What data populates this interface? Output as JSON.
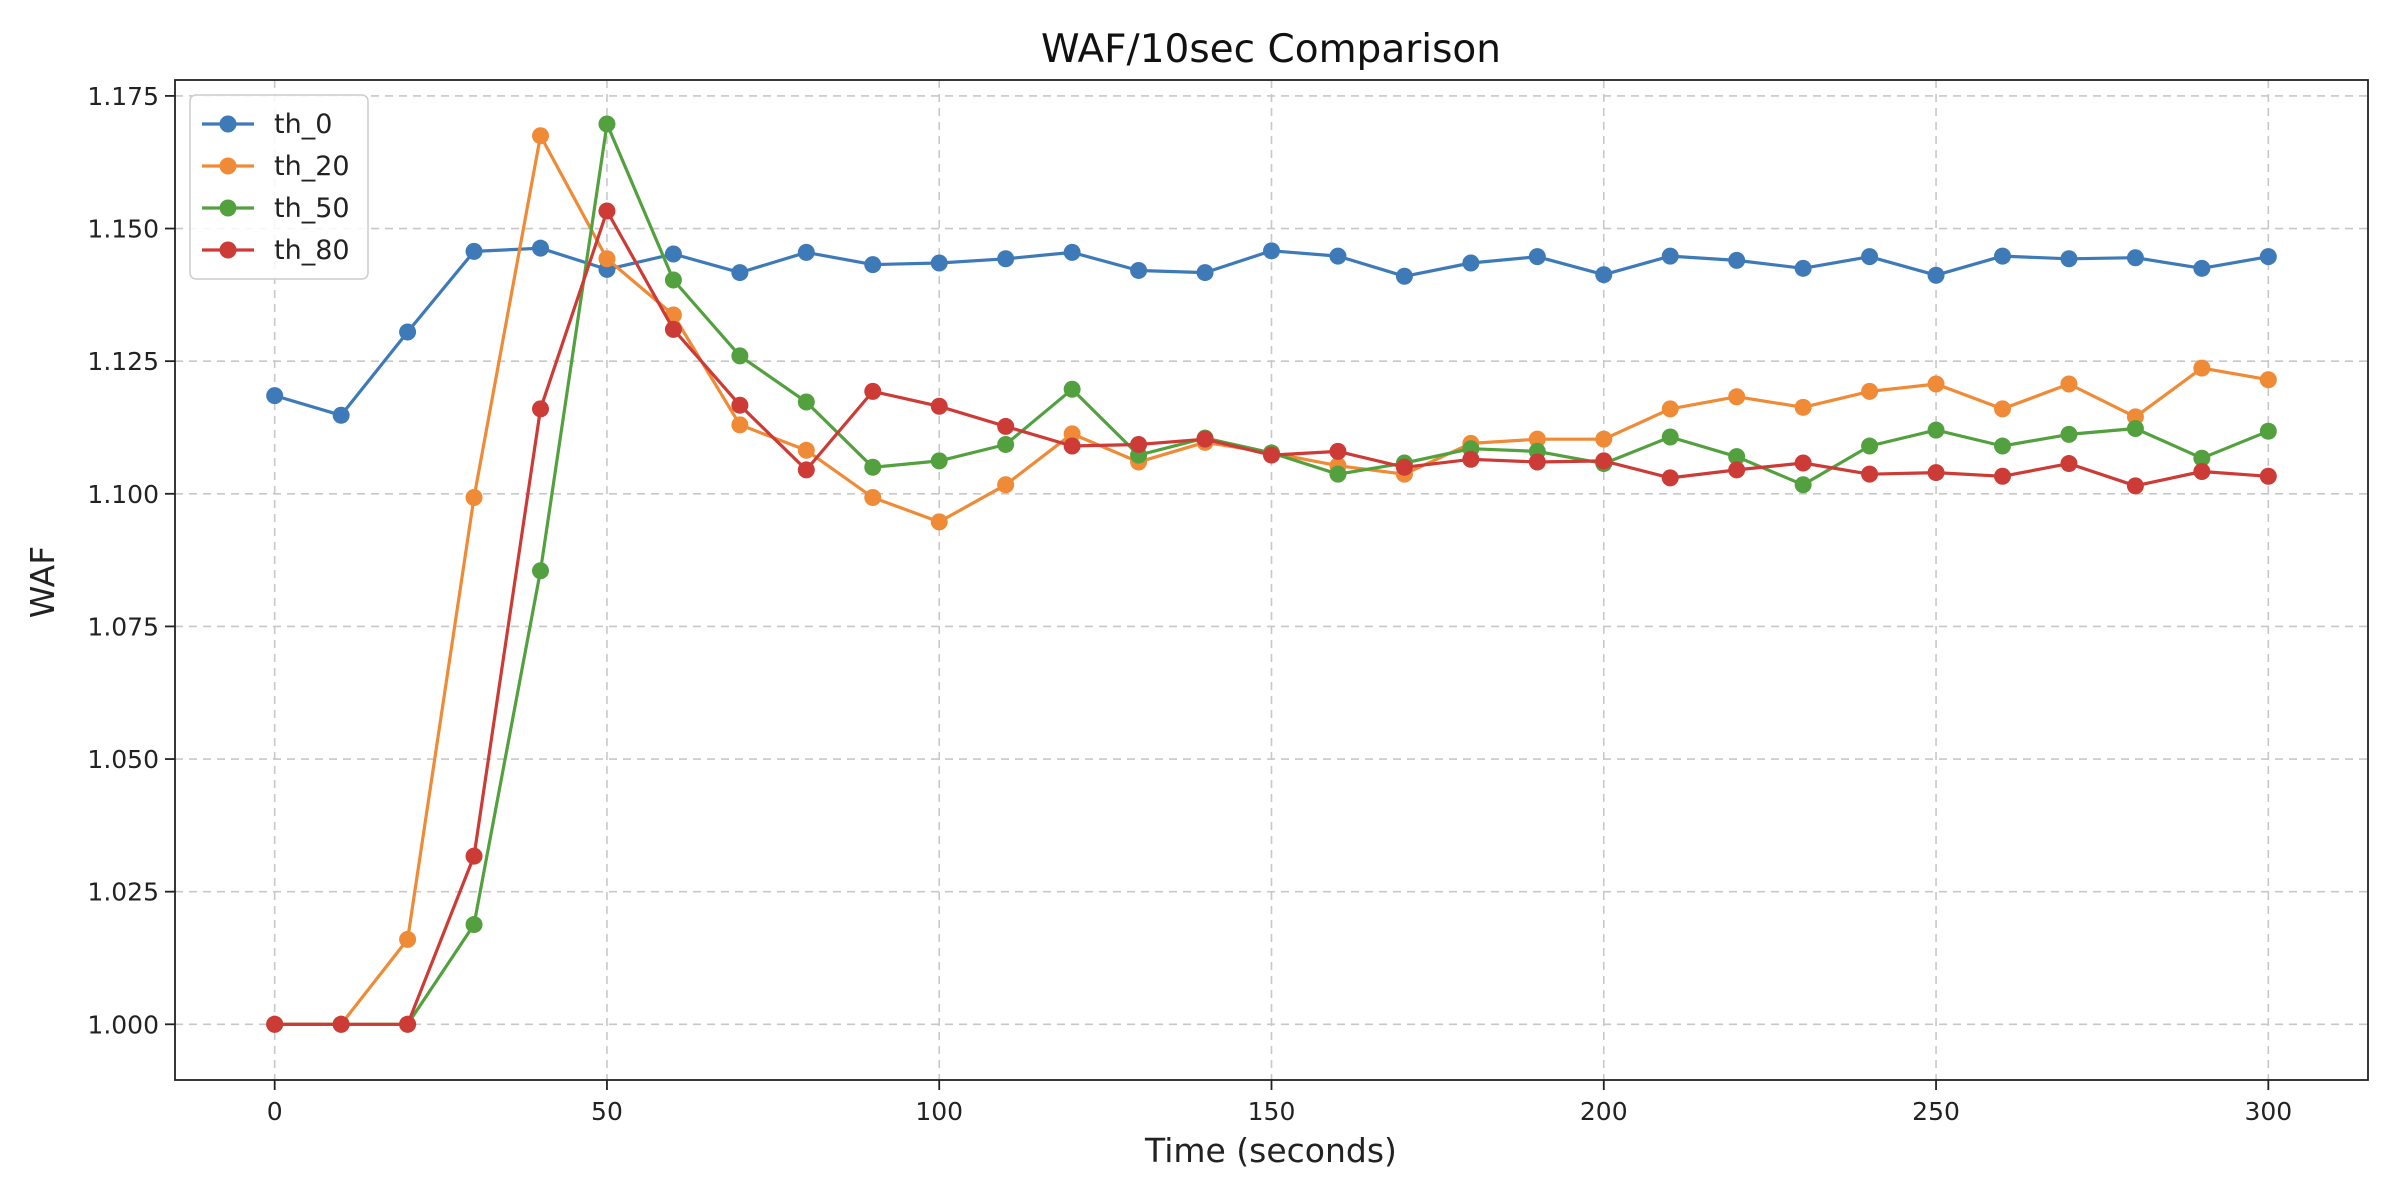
{
  "chart_data": {
    "type": "line",
    "title": "WAF/10sec Comparison",
    "xlabel": "Time (seconds)",
    "ylabel": "WAF",
    "xlim": [
      -15,
      315
    ],
    "ylim": [
      0.9895,
      1.178
    ],
    "xticks": [
      0,
      50,
      100,
      150,
      200,
      250,
      300
    ],
    "xtick_labels": [
      "0",
      "50",
      "100",
      "150",
      "200",
      "250",
      "300"
    ],
    "yticks": [
      1.0,
      1.025,
      1.05,
      1.075,
      1.1,
      1.125,
      1.15,
      1.175
    ],
    "ytick_labels": [
      "1.000",
      "1.025",
      "1.050",
      "1.075",
      "1.100",
      "1.125",
      "1.150",
      "1.175"
    ],
    "grid": true,
    "legend_position": "top-left",
    "x": [
      0,
      10,
      20,
      30,
      40,
      50,
      60,
      70,
      80,
      90,
      100,
      110,
      120,
      130,
      140,
      150,
      160,
      170,
      180,
      190,
      200,
      210,
      220,
      230,
      240,
      250,
      260,
      270,
      280,
      290,
      300
    ],
    "series": [
      {
        "name": "th_0",
        "color": "#3e7ab8",
        "values": [
          1.1185,
          1.1148,
          1.1305,
          1.1457,
          1.1463,
          1.1423,
          1.1452,
          1.1417,
          1.1455,
          1.1432,
          1.1435,
          1.1443,
          1.1455,
          1.1421,
          1.1417,
          1.1458,
          1.1448,
          1.141,
          1.1435,
          1.1447,
          1.1413,
          1.1448,
          1.144,
          1.1425,
          1.1447,
          1.1412,
          1.1448,
          1.1443,
          1.1445,
          1.1425,
          1.1447
        ]
      },
      {
        "name": "th_20",
        "color": "#ef8a36",
        "values": [
          1.0,
          1.0,
          1.016,
          1.0993,
          1.1675,
          1.1443,
          1.1337,
          1.113,
          1.1082,
          1.0993,
          1.0947,
          1.1017,
          1.1113,
          1.106,
          1.1097,
          1.1077,
          1.1053,
          1.1037,
          1.1095,
          1.1103,
          1.1103,
          1.116,
          1.1183,
          1.1163,
          1.1193,
          1.1207,
          1.116,
          1.1207,
          1.1145,
          1.1237,
          1.1215
        ]
      },
      {
        "name": "th_50",
        "color": "#53a03f",
        "values": [
          1.0,
          1.0,
          1.0,
          1.0188,
          1.0855,
          1.1697,
          1.1403,
          1.126,
          1.1173,
          1.105,
          1.1062,
          1.1093,
          1.1197,
          1.1073,
          1.1105,
          1.1077,
          1.1037,
          1.1058,
          1.1085,
          1.108,
          1.1057,
          1.1107,
          1.107,
          1.1017,
          1.109,
          1.112,
          1.109,
          1.1112,
          1.1123,
          1.1067,
          1.1118
        ]
      },
      {
        "name": "th_80",
        "color": "#cc3b36",
        "values": [
          1.0,
          1.0,
          1.0,
          1.0317,
          1.116,
          1.1533,
          1.131,
          1.1167,
          1.1045,
          1.1193,
          1.1165,
          1.1127,
          1.109,
          1.1093,
          1.1103,
          1.1073,
          1.108,
          1.105,
          1.1065,
          1.106,
          1.1062,
          1.103,
          1.1045,
          1.1058,
          1.1037,
          1.104,
          1.1033,
          1.1057,
          1.1015,
          1.1042,
          1.1033
        ]
      }
    ]
  }
}
